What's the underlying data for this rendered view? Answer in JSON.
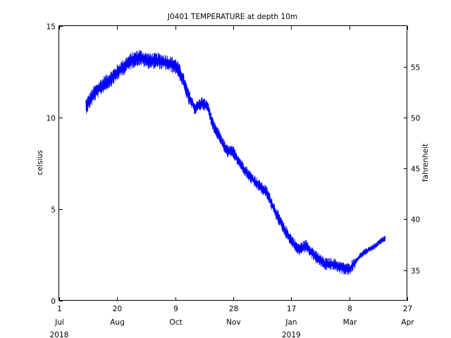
{
  "chart_data": {
    "type": "line",
    "title": "J0401 TEMPERATURE at depth 10m",
    "xlabel": "",
    "ylabel": "celsius",
    "ylabel_right": "fahrenheit",
    "grid": false,
    "xlim": [
      "2018-07-01",
      "2019-04-27"
    ],
    "ylim": [
      0,
      15
    ],
    "ylim_right": [
      32,
      59
    ],
    "x_ticks": [
      {
        "date": "2018-07-01",
        "day": "1",
        "month": "Jul"
      },
      {
        "date": "2018-08-20",
        "day": "20",
        "month": "Aug"
      },
      {
        "date": "2018-10-09",
        "day": "9",
        "month": "Oct"
      },
      {
        "date": "2018-11-28",
        "day": "28",
        "month": "Nov"
      },
      {
        "date": "2019-01-17",
        "day": "17",
        "month": "Jan"
      },
      {
        "date": "2019-03-08",
        "day": "8",
        "month": "Mar"
      },
      {
        "date": "2019-04-27",
        "day": "27",
        "month": "Apr"
      }
    ],
    "year_labels": [
      {
        "date": "2018-07-01",
        "label": "2018"
      },
      {
        "date": "2019-01-17",
        "label": "2019"
      }
    ],
    "y_ticks": [
      "0",
      "5",
      "10",
      "15"
    ],
    "y_ticks_right": [
      "35",
      "40",
      "45",
      "50",
      "55"
    ],
    "series": [
      {
        "color": "#0000ff",
        "noise_amplitude": 0.35,
        "points": [
          {
            "x": "2018-07-24",
            "y": 10.6
          },
          {
            "x": "2018-07-31",
            "y": 11.3
          },
          {
            "x": "2018-08-08",
            "y": 11.8
          },
          {
            "x": "2018-08-16",
            "y": 12.2
          },
          {
            "x": "2018-08-24",
            "y": 12.7
          },
          {
            "x": "2018-09-01",
            "y": 13.1
          },
          {
            "x": "2018-09-08",
            "y": 13.3
          },
          {
            "x": "2018-09-16",
            "y": 13.1
          },
          {
            "x": "2018-09-24",
            "y": 13.1
          },
          {
            "x": "2018-10-02",
            "y": 13.0
          },
          {
            "x": "2018-10-10",
            "y": 12.8
          },
          {
            "x": "2018-10-15",
            "y": 12.2
          },
          {
            "x": "2018-10-20",
            "y": 11.2
          },
          {
            "x": "2018-10-26",
            "y": 10.5
          },
          {
            "x": "2018-11-01",
            "y": 10.8
          },
          {
            "x": "2018-11-06",
            "y": 10.6
          },
          {
            "x": "2018-11-11",
            "y": 9.5
          },
          {
            "x": "2018-11-16",
            "y": 9.0
          },
          {
            "x": "2018-11-22",
            "y": 8.2
          },
          {
            "x": "2018-11-28",
            "y": 8.1
          },
          {
            "x": "2018-12-05",
            "y": 7.4
          },
          {
            "x": "2018-12-12",
            "y": 6.8
          },
          {
            "x": "2018-12-20",
            "y": 6.3
          },
          {
            "x": "2018-12-27",
            "y": 5.9
          },
          {
            "x": "2019-01-03",
            "y": 4.9
          },
          {
            "x": "2019-01-10",
            "y": 4.0
          },
          {
            "x": "2019-01-17",
            "y": 3.3
          },
          {
            "x": "2019-01-23",
            "y": 2.8
          },
          {
            "x": "2019-01-30",
            "y": 3.0
          },
          {
            "x": "2019-02-07",
            "y": 2.4
          },
          {
            "x": "2019-02-15",
            "y": 2.0
          },
          {
            "x": "2019-02-22",
            "y": 2.0
          },
          {
            "x": "2019-03-01",
            "y": 1.8
          },
          {
            "x": "2019-03-08",
            "y": 1.7
          },
          {
            "x": "2019-03-13",
            "y": 2.1
          },
          {
            "x": "2019-03-18",
            "y": 2.5
          },
          {
            "x": "2019-03-25",
            "y": 2.8
          },
          {
            "x": "2019-03-31",
            "y": 3.0
          },
          {
            "x": "2019-04-05",
            "y": 3.3
          },
          {
            "x": "2019-04-08",
            "y": 3.4
          }
        ]
      }
    ]
  }
}
